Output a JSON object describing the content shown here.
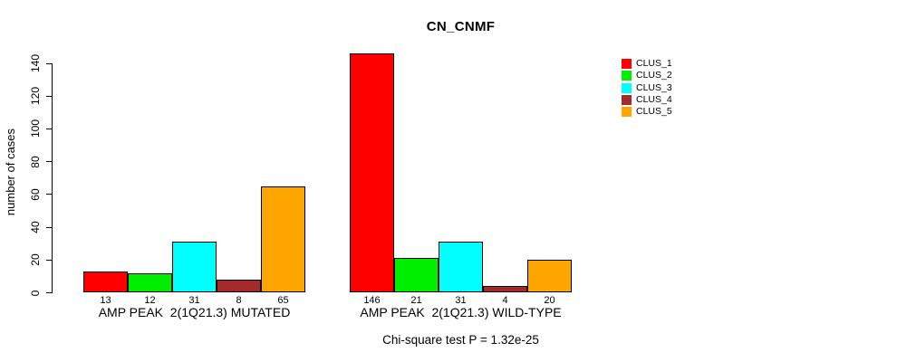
{
  "chart_data": {
    "type": "bar",
    "title": "CN_CNMF",
    "ylabel": "number of cases",
    "xlabel": "",
    "ylim": [
      0,
      140
    ],
    "yticks": [
      0,
      20,
      40,
      60,
      80,
      100,
      120,
      140
    ],
    "grid": false,
    "categories": [
      "AMP PEAK  2(1Q21.3) MUTATED",
      "AMP PEAK  2(1Q21.3) WILD-TYPE"
    ],
    "series": [
      {
        "name": "CLUS_1",
        "color": "#FF0000",
        "values": [
          13,
          146
        ]
      },
      {
        "name": "CLUS_2",
        "color": "#00EE00",
        "values": [
          12,
          21
        ]
      },
      {
        "name": "CLUS_3",
        "color": "#00FFFF",
        "values": [
          31,
          31
        ]
      },
      {
        "name": "CLUS_4",
        "color": "#A52A2A",
        "values": [
          8,
          4
        ]
      },
      {
        "name": "CLUS_5",
        "color": "#FFA500",
        "values": [
          65,
          20
        ]
      }
    ],
    "bar_value_labels": [
      [
        "13",
        "12",
        "31",
        "8",
        "65"
      ],
      [
        "146",
        "21",
        "31",
        "4",
        "20"
      ]
    ],
    "legend_position": "top-right",
    "annotation": "Chi-square test P = 1.32e-25",
    "axis_color": "#000000",
    "background_color": "#ffffff"
  }
}
